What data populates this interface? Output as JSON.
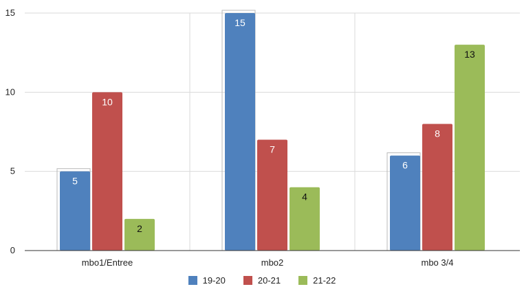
{
  "chart_data": {
    "type": "bar",
    "categories": [
      "mbo1/Entree",
      "mbo2",
      "mbo 3/4"
    ],
    "series": [
      {
        "name": "19-20",
        "values": [
          5,
          15,
          6
        ],
        "color": "#4f81bd"
      },
      {
        "name": "20-21",
        "values": [
          10,
          7,
          8
        ],
        "color": "#c0504d"
      },
      {
        "name": "21-22",
        "values": [
          2,
          4,
          13
        ],
        "color": "#9bbb59"
      }
    ],
    "data_labels": true,
    "ylim": [
      0,
      15
    ],
    "yticks": [
      0,
      5,
      10,
      15
    ],
    "grid": true,
    "legend_position": "bottom"
  }
}
